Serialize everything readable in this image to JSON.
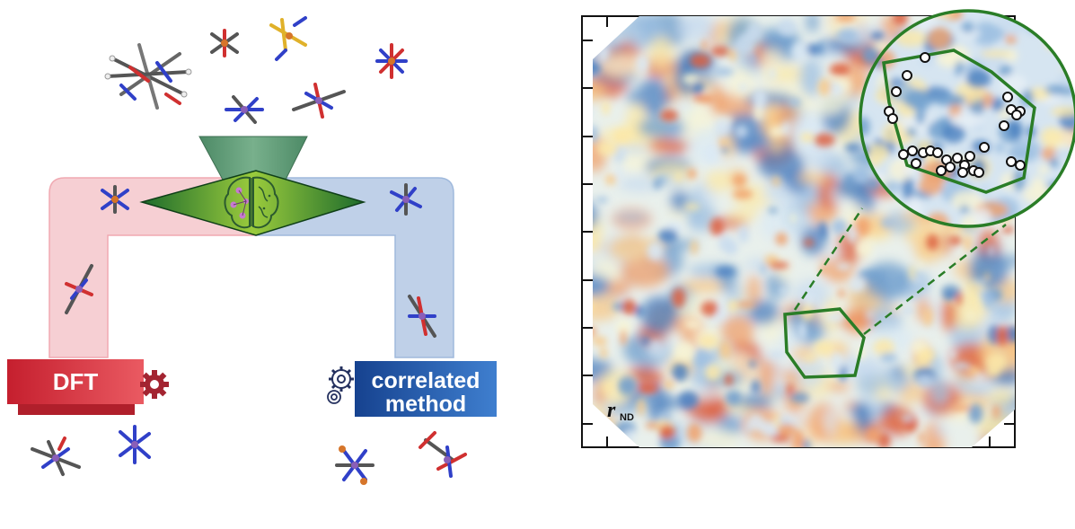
{
  "labels": {
    "dft": "DFT",
    "correlated_line1": "correlated",
    "correlated_line2": "method",
    "map_label_main": "r",
    "map_label_sub": "ND"
  },
  "colors": {
    "dft_red": "#d7333f",
    "correlated_blue": "#1f5aa8",
    "pipe_pink": "#f4c6cb",
    "pipe_blue": "#b7c9e3",
    "funnel_green": "#5f9a77",
    "diamond_green": "#2e8b3a",
    "highlight_green": "#2a7d27",
    "map_red": "#d9553a",
    "map_yellow": "#fbe8a8",
    "map_blue": "#6c9ccc"
  },
  "icons": {
    "brain": "brain-icon",
    "gear": "gear-icon",
    "molecule": "molecule-icon"
  }
}
